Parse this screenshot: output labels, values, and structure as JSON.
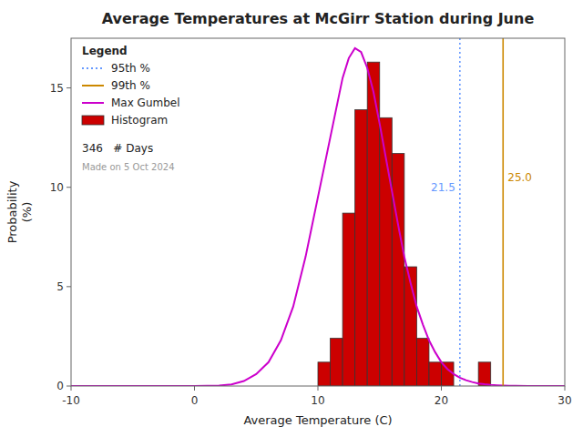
{
  "chart_data": {
    "type": "histogram",
    "title": "Average Temperatures at McGirr Station during June",
    "x_label": "Average Temperature (C)",
    "y_label": "Probability\n(%)",
    "xlim": [
      -10,
      30
    ],
    "ylim": [
      0,
      17.5
    ],
    "xticks": [
      -10,
      0,
      10,
      20,
      30
    ],
    "yticks": [
      0,
      5,
      10,
      15
    ],
    "grid": false,
    "legend": "upper left",
    "legend_title": "Legend",
    "series": [
      {
        "name": "Histogram",
        "type": "bar",
        "color": "#cc0000",
        "bins": [
          9.0,
          10.0,
          11.0,
          12.0,
          13.0,
          14.0,
          15.0,
          16.0,
          17.0,
          18.0,
          19.0,
          20.0,
          21.0,
          22.0,
          23.0,
          24.0,
          25.0
        ],
        "values": [
          0.0,
          1.2,
          2.4,
          8.7,
          13.9,
          16.3,
          13.5,
          11.7,
          6.0,
          2.4,
          1.2,
          1.2,
          0.0,
          0.0,
          1.2,
          0.0
        ]
      },
      {
        "name": "Max Gumbel",
        "type": "line",
        "color": "#cc00cc",
        "line_style": "solid",
        "x": [
          -10,
          -9,
          -8,
          -7,
          -6,
          -5,
          -4,
          -3,
          -2,
          -1,
          0,
          1,
          2,
          3,
          4,
          5,
          6,
          7,
          8,
          9,
          10,
          10.5,
          11,
          11.5,
          12,
          12.5,
          13,
          13.5,
          14,
          14.5,
          15,
          15.5,
          16,
          16.5,
          17,
          17.5,
          18,
          18.5,
          19,
          19.5,
          20,
          20.5,
          21,
          21.5,
          22,
          22.5,
          23,
          23.5,
          24,
          24.5,
          25,
          25.5,
          26,
          27,
          28,
          29,
          30
        ],
        "values": [
          0.0,
          0.0,
          0.0,
          0.0,
          0.0,
          0.0,
          0.0,
          0.0,
          0.0,
          0.0,
          0.0,
          0.01,
          0.02,
          0.08,
          0.25,
          0.6,
          1.2,
          2.3,
          4.0,
          6.5,
          9.5,
          11.0,
          12.5,
          14.0,
          15.5,
          16.5,
          17.0,
          16.8,
          16.0,
          14.8,
          13.2,
          11.5,
          9.8,
          8.1,
          6.5,
          5.2,
          4.0,
          3.1,
          2.3,
          1.7,
          1.2,
          0.85,
          0.6,
          0.42,
          0.29,
          0.2,
          0.13,
          0.09,
          0.06,
          0.04,
          0.025,
          0.016,
          0.01,
          0.004,
          0.002,
          0.001,
          0.0
        ]
      }
    ],
    "annotations": [
      {
        "name": "95th %",
        "x": 21.5,
        "label": "21.5",
        "color": "#6699ff",
        "line_style": "dotted"
      },
      {
        "name": "99th %",
        "x": 25.0,
        "label": "25.0",
        "color": "#cc8800",
        "line_style": "solid"
      }
    ],
    "notes": [
      "346   # Days",
      "Made on 5 Oct 2024"
    ]
  }
}
